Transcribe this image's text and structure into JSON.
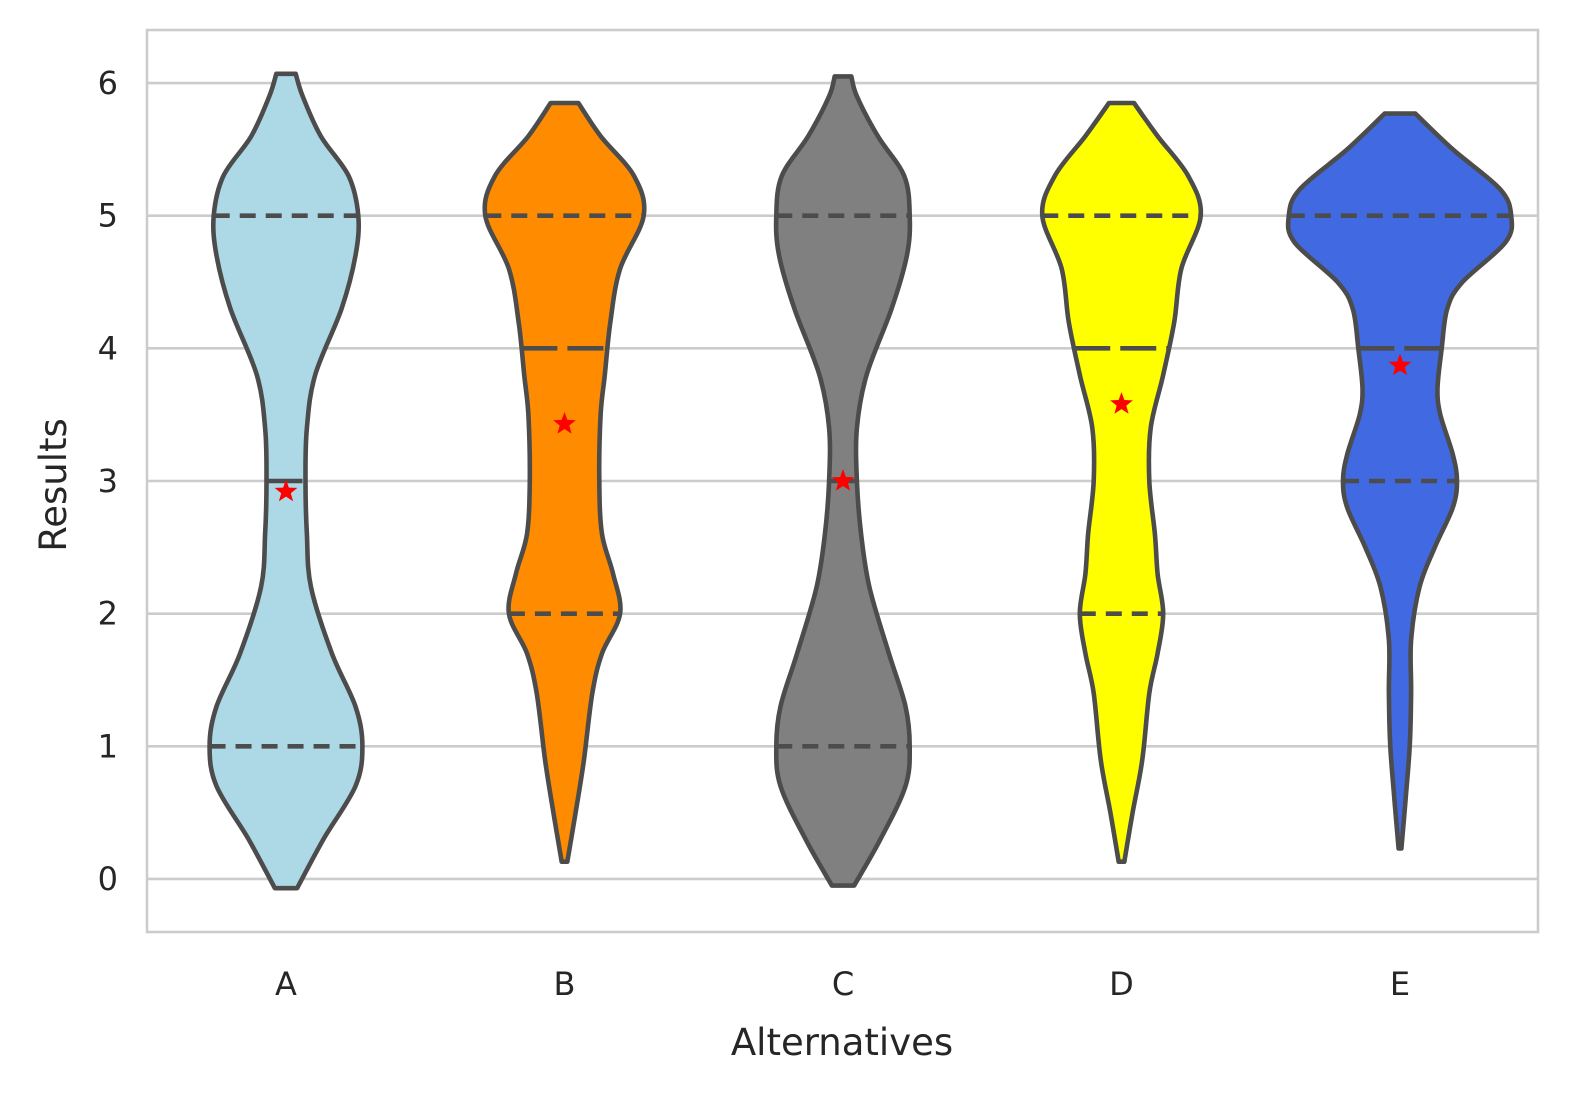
{
  "chart_data": {
    "type": "violin",
    "xlabel": "Alternatives",
    "ylabel": "Results",
    "categories": [
      "A",
      "B",
      "C",
      "D",
      "E"
    ],
    "ylim": [
      -0.4,
      6.4
    ],
    "yticks": [
      0,
      1,
      2,
      3,
      4,
      5,
      6
    ],
    "ytick_labels": [
      "0",
      "1",
      "2",
      "3",
      "4",
      "5",
      "6"
    ],
    "grid": "horizontal",
    "colors": [
      "#add8e6",
      "#ff8c00",
      "#808080",
      "#ffff00",
      "#4169e1"
    ],
    "outline_color": "#4c4c4c",
    "mean_marker_color": "#ff0000",
    "violins": [
      {
        "name": "A",
        "y_min": -0.07,
        "y_max": 6.07,
        "q1": 1,
        "median": 3,
        "q3": 5,
        "mean": 2.92,
        "density": [
          [
            -0.07,
            0.08
          ],
          [
            0.3,
            0.27
          ],
          [
            0.7,
            0.5
          ],
          [
            1.0,
            0.55
          ],
          [
            1.3,
            0.5
          ],
          [
            1.7,
            0.33
          ],
          [
            2.2,
            0.18
          ],
          [
            2.6,
            0.15
          ],
          [
            3.0,
            0.14
          ],
          [
            3.4,
            0.15
          ],
          [
            3.8,
            0.21
          ],
          [
            4.3,
            0.4
          ],
          [
            4.7,
            0.5
          ],
          [
            5.0,
            0.52
          ],
          [
            5.3,
            0.45
          ],
          [
            5.6,
            0.25
          ],
          [
            5.9,
            0.12
          ],
          [
            6.07,
            0.07
          ]
        ]
      },
      {
        "name": "B",
        "y_min": 0.13,
        "y_max": 5.85,
        "q1": 2,
        "median": 4,
        "q3": 5,
        "mean": 3.43,
        "density": [
          [
            0.13,
            0.02
          ],
          [
            0.5,
            0.08
          ],
          [
            0.9,
            0.14
          ],
          [
            1.4,
            0.2
          ],
          [
            1.7,
            0.27
          ],
          [
            2.0,
            0.4
          ],
          [
            2.3,
            0.35
          ],
          [
            2.6,
            0.27
          ],
          [
            3.0,
            0.25
          ],
          [
            3.5,
            0.26
          ],
          [
            3.8,
            0.29
          ],
          [
            4.2,
            0.33
          ],
          [
            4.6,
            0.4
          ],
          [
            5.0,
            0.57
          ],
          [
            5.3,
            0.5
          ],
          [
            5.6,
            0.26
          ],
          [
            5.85,
            0.1
          ]
        ]
      },
      {
        "name": "C",
        "y_min": -0.05,
        "y_max": 6.05,
        "q1": 1,
        "median": 3,
        "q3": 5,
        "mean": 3.0,
        "density": [
          [
            -0.05,
            0.08
          ],
          [
            0.3,
            0.27
          ],
          [
            0.7,
            0.45
          ],
          [
            1.0,
            0.48
          ],
          [
            1.3,
            0.45
          ],
          [
            1.7,
            0.33
          ],
          [
            2.2,
            0.19
          ],
          [
            2.6,
            0.13
          ],
          [
            3.0,
            0.1
          ],
          [
            3.4,
            0.1
          ],
          [
            3.8,
            0.17
          ],
          [
            4.3,
            0.35
          ],
          [
            4.7,
            0.46
          ],
          [
            5.0,
            0.48
          ],
          [
            5.3,
            0.44
          ],
          [
            5.6,
            0.25
          ],
          [
            5.9,
            0.1
          ],
          [
            6.05,
            0.06
          ]
        ]
      },
      {
        "name": "D",
        "y_min": 0.13,
        "y_max": 5.85,
        "q1": 2,
        "median": 4,
        "q3": 5,
        "mean": 3.58,
        "density": [
          [
            0.13,
            0.02
          ],
          [
            0.5,
            0.08
          ],
          [
            0.9,
            0.15
          ],
          [
            1.4,
            0.2
          ],
          [
            1.7,
            0.26
          ],
          [
            2.0,
            0.3
          ],
          [
            2.3,
            0.26
          ],
          [
            2.6,
            0.24
          ],
          [
            3.0,
            0.2
          ],
          [
            3.4,
            0.21
          ],
          [
            3.8,
            0.3
          ],
          [
            4.2,
            0.38
          ],
          [
            4.6,
            0.43
          ],
          [
            5.0,
            0.57
          ],
          [
            5.3,
            0.48
          ],
          [
            5.6,
            0.26
          ],
          [
            5.85,
            0.09
          ]
        ]
      },
      {
        "name": "E",
        "y_min": 0.23,
        "y_max": 5.77,
        "q1": 3,
        "median": 4,
        "q3": 5,
        "mean": 3.87,
        "density": [
          [
            0.23,
            0.01
          ],
          [
            0.6,
            0.04
          ],
          [
            1.0,
            0.07
          ],
          [
            1.4,
            0.08
          ],
          [
            1.8,
            0.08
          ],
          [
            2.2,
            0.14
          ],
          [
            2.5,
            0.25
          ],
          [
            2.8,
            0.38
          ],
          [
            3.0,
            0.41
          ],
          [
            3.2,
            0.38
          ],
          [
            3.5,
            0.29
          ],
          [
            3.7,
            0.27
          ],
          [
            4.0,
            0.3
          ],
          [
            4.3,
            0.34
          ],
          [
            4.5,
            0.45
          ],
          [
            4.8,
            0.76
          ],
          [
            5.0,
            0.8
          ],
          [
            5.2,
            0.72
          ],
          [
            5.5,
            0.38
          ],
          [
            5.77,
            0.11
          ]
        ]
      }
    ]
  }
}
